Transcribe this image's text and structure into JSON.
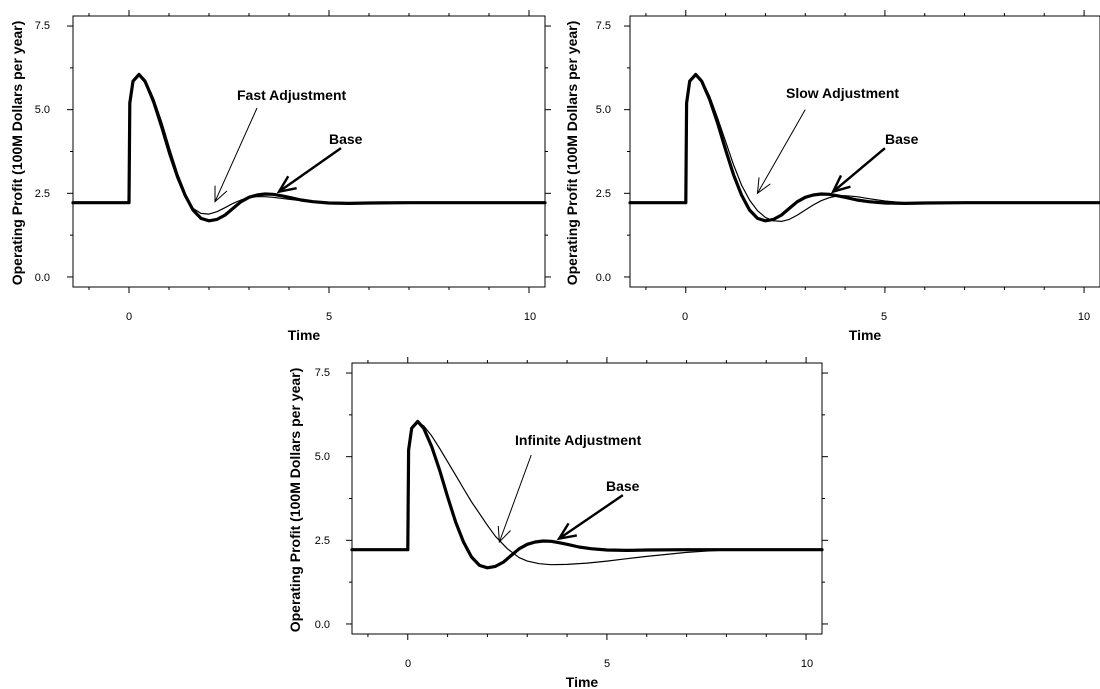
{
  "chart_data": [
    {
      "type": "line",
      "xlabel": "Time",
      "ylabel": "Operating Profit (100M Dollars per year)",
      "xlim": [
        -1.4,
        10.4
      ],
      "ylim": [
        -0.3,
        7.8
      ],
      "xticks": [
        0,
        5,
        10
      ],
      "xtick_labels": [
        "0",
        "5",
        "10"
      ],
      "yticks": [
        0,
        2.5,
        5,
        7.5
      ],
      "ytick_labels": [
        "0.0",
        "2.5",
        "5.0",
        "7.5"
      ],
      "grid": false,
      "legend": "none",
      "series": [
        {
          "style": "thick",
          "x": [
            -1.4,
            0,
            0.02,
            0.1,
            0.25,
            0.4,
            0.6,
            0.8,
            1.0,
            1.2,
            1.4,
            1.6,
            1.8,
            2.0,
            2.2,
            2.4,
            2.6,
            2.8,
            3.0,
            3.2,
            3.4,
            3.6,
            3.8,
            4.0,
            4.3,
            4.6,
            5.0,
            5.5,
            6.0,
            7.0,
            8.0,
            9.0,
            10.4
          ],
          "y": [
            2.22,
            2.22,
            5.2,
            5.85,
            6.05,
            5.85,
            5.3,
            4.6,
            3.8,
            3.05,
            2.45,
            2.0,
            1.75,
            1.68,
            1.72,
            1.85,
            2.05,
            2.25,
            2.38,
            2.45,
            2.48,
            2.47,
            2.43,
            2.38,
            2.3,
            2.25,
            2.21,
            2.2,
            2.21,
            2.22,
            2.22,
            2.22,
            2.22
          ]
        },
        {
          "style": "thin",
          "x": [
            0,
            0.02,
            0.1,
            0.25,
            0.4,
            0.6,
            0.8,
            1.0,
            1.2,
            1.4,
            1.6,
            1.8,
            2.0,
            2.2,
            2.4,
            2.6,
            2.8,
            3.0,
            3.2,
            3.4,
            3.6,
            3.8,
            4.0,
            4.3,
            4.6,
            5.0,
            5.5,
            6.0,
            7.0,
            8.0,
            10.4
          ],
          "y": [
            2.22,
            5.2,
            5.85,
            6.02,
            5.8,
            5.2,
            4.45,
            3.65,
            2.95,
            2.4,
            2.05,
            1.9,
            1.88,
            1.95,
            2.07,
            2.2,
            2.3,
            2.37,
            2.4,
            2.4,
            2.38,
            2.35,
            2.32,
            2.28,
            2.25,
            2.23,
            2.22,
            2.22,
            2.22,
            2.22,
            2.22
          ]
        }
      ],
      "annotations": [
        {
          "text": "Fast Adjustment",
          "x": 2.7,
          "y": 5.4,
          "arrow_from": [
            3.2,
            5.05
          ],
          "arrow_to": [
            2.15,
            2.25
          ]
        },
        {
          "text": "Base",
          "x": 5.6,
          "y": 4.1,
          "arrow_from": [
            5.3,
            3.85
          ],
          "arrow_to": [
            3.75,
            2.55
          ]
        }
      ]
    },
    {
      "type": "line",
      "xlabel": "Time",
      "ylabel": "Operating Profit (100M Dollars per year)",
      "xlim": [
        -1.4,
        10.4
      ],
      "ylim": [
        -0.3,
        7.8
      ],
      "xticks": [
        0,
        5,
        10
      ],
      "xtick_labels": [
        "0",
        "5",
        "10"
      ],
      "yticks": [
        0,
        2.5,
        5,
        7.5
      ],
      "ytick_labels": [
        "0.0",
        "2.5",
        "5.0",
        "7.5"
      ],
      "grid": false,
      "legend": "none",
      "series": [
        {
          "style": "thick",
          "x": [
            -1.4,
            0,
            0.02,
            0.1,
            0.25,
            0.4,
            0.6,
            0.8,
            1.0,
            1.2,
            1.4,
            1.6,
            1.8,
            2.0,
            2.2,
            2.4,
            2.6,
            2.8,
            3.0,
            3.2,
            3.4,
            3.6,
            3.8,
            4.0,
            4.3,
            4.6,
            5.0,
            5.5,
            6.0,
            7.0,
            8.0,
            9.0,
            10.4
          ],
          "y": [
            2.22,
            2.22,
            5.2,
            5.85,
            6.05,
            5.85,
            5.3,
            4.6,
            3.8,
            3.05,
            2.45,
            2.0,
            1.75,
            1.68,
            1.72,
            1.85,
            2.05,
            2.25,
            2.38,
            2.45,
            2.48,
            2.47,
            2.43,
            2.38,
            2.3,
            2.25,
            2.21,
            2.2,
            2.21,
            2.22,
            2.22,
            2.22,
            2.22
          ]
        },
        {
          "style": "thin",
          "x": [
            0,
            0.02,
            0.1,
            0.25,
            0.4,
            0.6,
            0.8,
            1.0,
            1.2,
            1.4,
            1.6,
            1.8,
            2.0,
            2.2,
            2.4,
            2.6,
            2.8,
            3.0,
            3.2,
            3.4,
            3.6,
            3.8,
            4.0,
            4.3,
            4.6,
            5.0,
            5.5,
            6.0,
            7.0,
            8.0,
            10.4
          ],
          "y": [
            2.22,
            5.2,
            5.85,
            6.03,
            5.88,
            5.4,
            4.75,
            4.05,
            3.35,
            2.75,
            2.3,
            1.98,
            1.78,
            1.68,
            1.66,
            1.72,
            1.85,
            2.0,
            2.15,
            2.28,
            2.37,
            2.42,
            2.43,
            2.4,
            2.34,
            2.27,
            2.22,
            2.2,
            2.21,
            2.22,
            2.22
          ]
        }
      ],
      "annotations": [
        {
          "text": "Slow Adjustment",
          "x": 2.55,
          "y": 5.4,
          "arrow_from": [
            3.0,
            5.0
          ],
          "arrow_to": [
            1.8,
            2.5
          ]
        },
        {
          "text": "Base",
          "x": 5.0,
          "y": 4.1,
          "arrow_from": [
            5.0,
            3.85
          ],
          "arrow_to": [
            3.7,
            2.55
          ]
        }
      ]
    },
    {
      "type": "line",
      "xlabel": "Time",
      "ylabel": "Operating Profit (100M Dollars per year)",
      "xlim": [
        -1.4,
        10.4
      ],
      "ylim": [
        -0.3,
        7.8
      ],
      "xticks": [
        0,
        5,
        10
      ],
      "xtick_labels": [
        "0",
        "5",
        "10"
      ],
      "yticks": [
        0,
        2.5,
        5,
        7.5
      ],
      "ytick_labels": [
        "0.0",
        "2.5",
        "5.0",
        "7.5"
      ],
      "grid": false,
      "legend": "none",
      "series": [
        {
          "style": "thick",
          "x": [
            -1.4,
            0,
            0.02,
            0.1,
            0.25,
            0.4,
            0.6,
            0.8,
            1.0,
            1.2,
            1.4,
            1.6,
            1.8,
            2.0,
            2.2,
            2.4,
            2.6,
            2.8,
            3.0,
            3.2,
            3.4,
            3.6,
            3.8,
            4.0,
            4.3,
            4.6,
            5.0,
            5.5,
            6.0,
            7.0,
            8.0,
            9.0,
            10.4
          ],
          "y": [
            2.22,
            2.22,
            5.2,
            5.85,
            6.05,
            5.85,
            5.3,
            4.6,
            3.8,
            3.05,
            2.45,
            2.0,
            1.75,
            1.68,
            1.72,
            1.85,
            2.05,
            2.25,
            2.38,
            2.45,
            2.48,
            2.47,
            2.43,
            2.38,
            2.3,
            2.25,
            2.21,
            2.2,
            2.21,
            2.22,
            2.22,
            2.22,
            2.22
          ]
        },
        {
          "style": "thin",
          "x": [
            0,
            0.02,
            0.1,
            0.25,
            0.4,
            0.6,
            0.8,
            1.0,
            1.2,
            1.4,
            1.6,
            1.8,
            2.0,
            2.2,
            2.5,
            2.8,
            3.0,
            3.3,
            3.6,
            4.0,
            4.5,
            5.0,
            5.5,
            6.0,
            6.5,
            7.0,
            7.5,
            8.0,
            9.0,
            10.4
          ],
          "y": [
            2.22,
            5.2,
            5.85,
            6.03,
            5.92,
            5.62,
            5.25,
            4.85,
            4.45,
            4.05,
            3.65,
            3.3,
            2.95,
            2.62,
            2.25,
            1.98,
            1.88,
            1.8,
            1.77,
            1.78,
            1.82,
            1.88,
            1.95,
            2.02,
            2.08,
            2.14,
            2.18,
            2.21,
            2.22,
            2.22
          ]
        }
      ],
      "annotations": [
        {
          "text": "Infinite Adjustment",
          "x": 2.7,
          "y": 5.4,
          "arrow_from": [
            3.1,
            5.05
          ],
          "arrow_to": [
            2.3,
            2.45
          ]
        },
        {
          "text": "Base",
          "x": 5.5,
          "y": 4.1,
          "arrow_from": [
            5.4,
            3.85
          ],
          "arrow_to": [
            3.8,
            2.55
          ]
        }
      ]
    }
  ]
}
